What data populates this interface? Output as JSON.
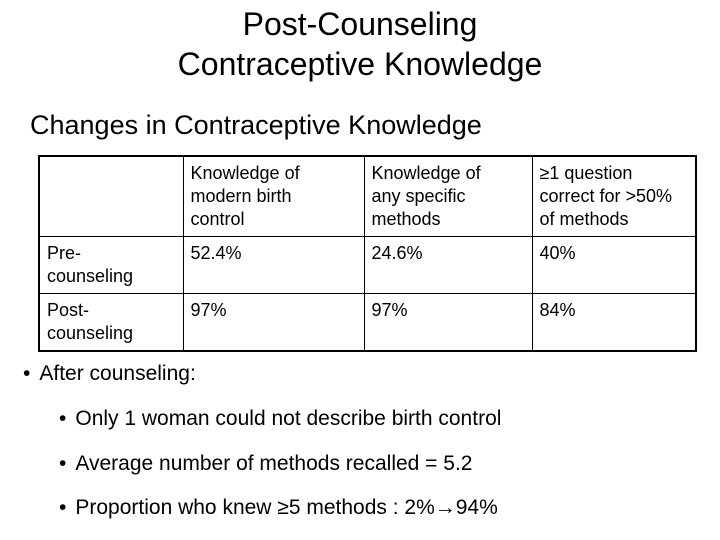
{
  "slide": {
    "colors": {
      "background": "#ffffff",
      "text": "#000000",
      "table_border": "#000000"
    },
    "title": {
      "line1": "Post-Counseling",
      "line2": "Contraceptive Knowledge"
    },
    "section_heading": "Changes in Contraceptive Knowledge",
    "table": {
      "columns": [
        {
          "header": ""
        },
        {
          "header": "Knowledge of\nmodern birth\ncontrol"
        },
        {
          "header": "Knowledge of\nany specific\nmethods"
        },
        {
          "header": "≥1 question\ncorrect for >50%\nof methods"
        }
      ],
      "rows": [
        {
          "label": "Pre-\ncounseling",
          "values": [
            "52.4%",
            "24.6%",
            "40%"
          ]
        },
        {
          "label": "Post-\ncounseling",
          "values": [
            "97%",
            "97%",
            "84%"
          ]
        }
      ]
    },
    "bullets": {
      "glyph": "•",
      "level1": [
        {
          "text": "After counseling:"
        }
      ],
      "level2": [
        {
          "text": "Only 1 woman could not describe birth control"
        },
        {
          "text": "Average number of methods recalled = 5.2"
        },
        {
          "text": "Proportion who knew ≥5 methods : 2%→94%"
        }
      ]
    }
  }
}
